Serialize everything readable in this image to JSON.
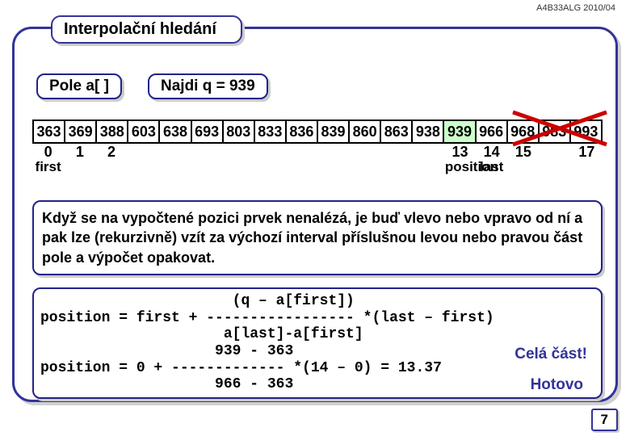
{
  "meta": {
    "course": "A4B33ALG  2010/04"
  },
  "title": "Interpolační hledání",
  "labels": {
    "pole": "Pole a[ ]",
    "najdi": "Najdi q = 939",
    "first": "first",
    "position": "position",
    "last": "last",
    "cela_cast": "Celá část!",
    "hotovo": "Hotovo"
  },
  "colors": {
    "panel_border": "#333399",
    "highlight": "#ccffcc",
    "cross": "#cc0000",
    "shadow": "#d0d0d0"
  },
  "array": {
    "values": [
      "363",
      "369",
      "388",
      "603",
      "638",
      "693",
      "803",
      "833",
      "836",
      "839",
      "860",
      "863",
      "938",
      "939",
      "966",
      "968",
      "983",
      "993"
    ],
    "highlight_index": 13,
    "strikeout_from": 15,
    "indices_shown": {
      "0": "0",
      "1": "1",
      "2": "2",
      "13": "13",
      "14": "14",
      "15": "15",
      "17": "17"
    },
    "labels_below": {
      "0": "first",
      "13": "position",
      "14": "last"
    }
  },
  "description": "Když se na vypočtené pozici prvek nenalézá, je buď vlevo nebo vpravo od ní a pak lze (rekurzivně) vzít za výchozí interval příslušnou levou nebo pravou část pole a výpočet opakovat.",
  "formula": "                      (q – a[first])\nposition = first + ----------------- *(last – first)\n                     a[last]-a[first]\n                    939 - 363\nposition = 0 + ------------- *(14 – 0) = 13.37\n                    966 - 363",
  "page": "7"
}
